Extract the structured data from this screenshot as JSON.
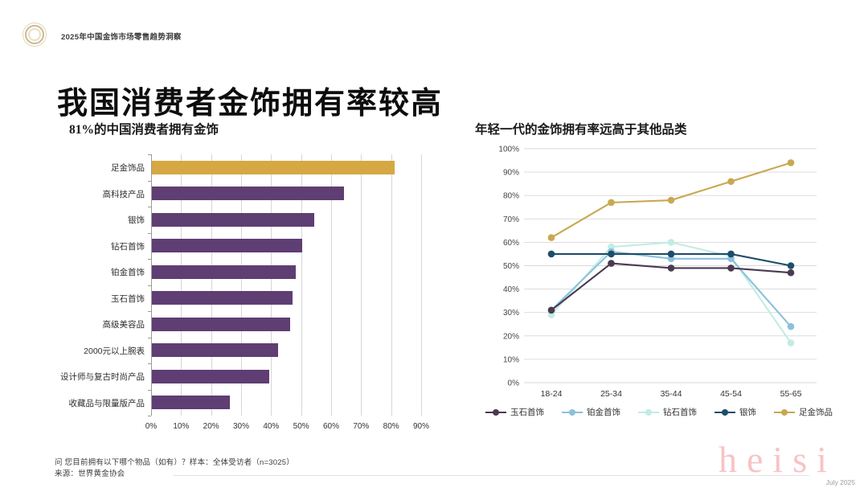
{
  "header": {
    "brand": "2025年中国金饰市场零售趋势洞察"
  },
  "title": "我国消费者金饰拥有率较高",
  "footnotes": [
    "问 您目前拥有以下哪个物品（如有）？样本：全体受访者（n=3025）",
    "来源：世界黄金协会"
  ],
  "watermark": "heisi",
  "date_label": "July 2025",
  "chart_data": [
    {
      "type": "bar",
      "orientation": "horizontal",
      "title": "81%的中国消费者拥有金饰",
      "categories": [
        "足金饰品",
        "高科技产品",
        "银饰",
        "钻石首饰",
        "铂金首饰",
        "玉石首饰",
        "高级美容品",
        "2000元以上腕表",
        "设计师与复古时尚产品",
        "收藏品与限量版产品"
      ],
      "values": [
        81,
        64,
        54,
        50,
        48,
        47,
        46,
        42,
        39,
        26
      ],
      "xlim": [
        0,
        90
      ],
      "x_ticks": [
        "0%",
        "10%",
        "20%",
        "30%",
        "40%",
        "50%",
        "60%",
        "70%",
        "80%",
        "90%"
      ],
      "highlight_index": 0,
      "colors": {
        "highlight": "#D5A843",
        "default": "#5F3E73",
        "grid": "#D6D6D6",
        "axis": "#9A9A9A"
      },
      "grid": true
    },
    {
      "type": "line",
      "title": "年轻一代的金饰拥有率远高于其他品类",
      "x": [
        "18-24",
        "25-34",
        "35-44",
        "45-54",
        "55-65"
      ],
      "ylim": [
        0,
        100
      ],
      "y_ticks": [
        "0%",
        "10%",
        "20%",
        "30%",
        "40%",
        "50%",
        "60%",
        "70%",
        "80%",
        "90%",
        "100%"
      ],
      "grid": true,
      "legend_position": "bottom",
      "series": [
        {
          "name": "玉石首饰",
          "color": "#4A3A52",
          "values": [
            31,
            51,
            49,
            49,
            47
          ]
        },
        {
          "name": "铂金首饰",
          "color": "#8BC1DD",
          "values": [
            31,
            56,
            53,
            53,
            24
          ]
        },
        {
          "name": "钻石首饰",
          "color": "#C2ECE3",
          "values": [
            29,
            58,
            60,
            54,
            17
          ]
        },
        {
          "name": "银饰",
          "color": "#1E4D6B",
          "values": [
            55,
            55,
            55,
            55,
            50
          ]
        },
        {
          "name": "足金饰品",
          "color": "#C8A851",
          "values": [
            62,
            77,
            78,
            86,
            94
          ]
        }
      ],
      "draw_order": [
        2,
        1,
        0,
        3,
        4
      ]
    }
  ]
}
